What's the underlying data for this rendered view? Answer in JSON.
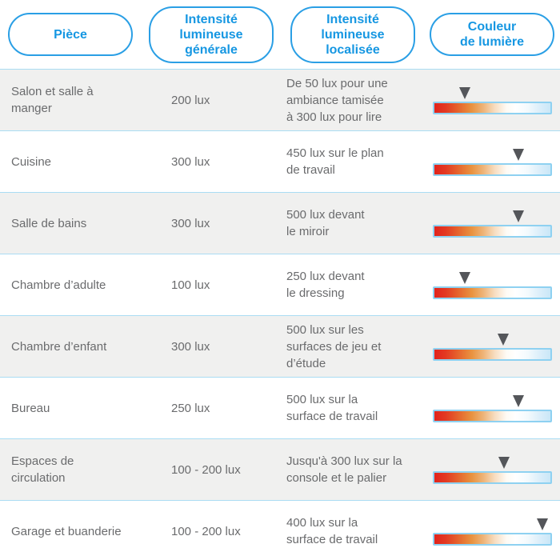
{
  "header": {
    "columns": [
      {
        "label": "Pièce"
      },
      {
        "label": "Intensité\nlumineuse\ngénérale"
      },
      {
        "label": "Intensité\nlumineuse\nlocalisée"
      },
      {
        "label": "Couleur\nde lumière"
      }
    ]
  },
  "rows": [
    {
      "room": "Salon et salle à\nmanger",
      "general": "200 lux",
      "localized": "De 50 lux pour une\nambiance tamisée\nà 300 lux pour lire",
      "marker_pct": 27
    },
    {
      "room": "Cuisine",
      "general": "300 lux",
      "localized": "450 lux sur le plan\nde travail",
      "marker_pct": 72
    },
    {
      "room": "Salle de bains",
      "general": "300 lux",
      "localized": "500 lux devant\nle miroir",
      "marker_pct": 72
    },
    {
      "room": "Chambre d’adulte",
      "general": "100 lux",
      "localized": "250 lux devant\nle dressing",
      "marker_pct": 27
    },
    {
      "room": "Chambre d’enfant",
      "general": "300 lux",
      "localized": "500 lux sur les\nsurfaces de jeu et\nd’étude",
      "marker_pct": 59
    },
    {
      "room": "Bureau",
      "general": "250 lux",
      "localized": "500 lux sur la\nsurface de travail",
      "marker_pct": 72
    },
    {
      "room": "Espaces de\ncirculation",
      "general": "100 - 200 lux",
      "localized": "Jusqu'à 300 lux sur la\nconsole et le palier",
      "marker_pct": 60
    },
    {
      "room": "Garage et buanderie",
      "general": "100 - 200 lux",
      "localized": "400 lux sur la\nsurface de travail",
      "marker_pct": 92
    }
  ],
  "colors": {
    "accent_blue": "#1697e2",
    "separator_blue": "#aadcf3",
    "alt_row_bg": "#f0f0ef",
    "body_text": "#6a6b6d",
    "marker_gray": "#54565a",
    "bar_border_blue": "#8ed1f1",
    "gradient_stops": [
      "#e2231c",
      "#e9923f",
      "#ffffff",
      "#c9e7f8"
    ]
  }
}
